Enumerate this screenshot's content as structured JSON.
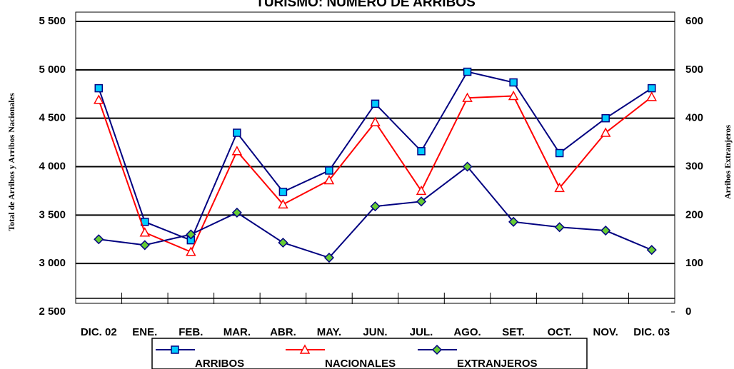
{
  "chart_data": {
    "type": "line",
    "title": "TURISMO: NÚMERO DE ARRIBOS",
    "y_label": "Total de Arribos y Arribos Nacionales",
    "y2_label": "Arribos Extranjeros",
    "categories": [
      "DIC. 02",
      "ENE.",
      "FEB.",
      "MAR.",
      "ABR.",
      "MAY.",
      "JUN.",
      "JUL.",
      "AGO.",
      "SET.",
      "OCT.",
      "NOV.",
      "DIC. 03"
    ],
    "series": [
      {
        "name": "ARRIBOS",
        "color": "#000080",
        "marker": "square",
        "marker_color": "#00ccff",
        "values": [
          4810,
          3430,
          3240,
          4350,
          3740,
          3960,
          4650,
          4160,
          4980,
          4870,
          4140,
          4500,
          4810
        ]
      },
      {
        "name": "NACIONALES",
        "color": "#ff0000",
        "marker": "triangle",
        "marker_color": "#ffffff",
        "values": [
          4690,
          3320,
          3120,
          4160,
          3610,
          3860,
          4460,
          3750,
          4710,
          4730,
          3780,
          4350,
          4720
        ]
      },
      {
        "name": "EXTRANJEROS",
        "color": "#000080",
        "marker": "diamond",
        "marker_color": "#66cc33",
        "axis": "y2",
        "values": [
          150,
          138,
          160,
          205,
          143,
          112,
          218,
          228,
          300,
          186,
          175,
          168,
          128
        ]
      }
    ],
    "ylim": [
      2500,
      5500
    ],
    "yticks": [
      {
        "value": 2500,
        "label": "2 500"
      },
      {
        "value": 3000,
        "label": "3 000"
      },
      {
        "value": 3500,
        "label": "3 500"
      },
      {
        "value": 4000,
        "label": "4 000"
      },
      {
        "value": 4500,
        "label": "4 500"
      },
      {
        "value": 5000,
        "label": "5 000"
      },
      {
        "value": 5500,
        "label": "5 500"
      }
    ],
    "y2lim": [
      0,
      600
    ],
    "y2ticks": [
      0,
      100,
      200,
      300,
      400,
      500,
      600
    ],
    "grid": true,
    "legend": "bottom"
  }
}
